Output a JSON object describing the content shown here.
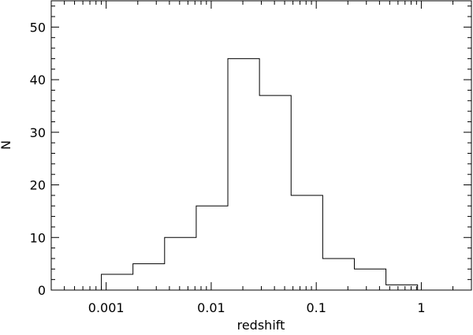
{
  "chart_data": {
    "type": "bar",
    "subtype": "histogram",
    "xlabel": "redshift",
    "ylabel": "N",
    "xscale": "log",
    "xlim": [
      0.0003,
      3.0
    ],
    "ylim": [
      0,
      55
    ],
    "x_ticks": [
      0.001,
      0.01,
      0.1,
      1
    ],
    "x_tick_labels": [
      "0.001",
      "0.01",
      "0.1",
      "1"
    ],
    "y_ticks": [
      0,
      10,
      20,
      30,
      40,
      50
    ],
    "y_tick_labels": [
      "0",
      "10",
      "20",
      "30",
      "40",
      "50"
    ],
    "bin_edges": [
      0.0009,
      0.0018,
      0.0036,
      0.0072,
      0.0144,
      0.0288,
      0.0576,
      0.1152,
      0.2304,
      0.4608,
      0.9216
    ],
    "values": [
      3,
      5,
      10,
      16,
      44,
      37,
      18,
      6,
      4,
      1
    ],
    "grid": false,
    "legend": "none"
  }
}
